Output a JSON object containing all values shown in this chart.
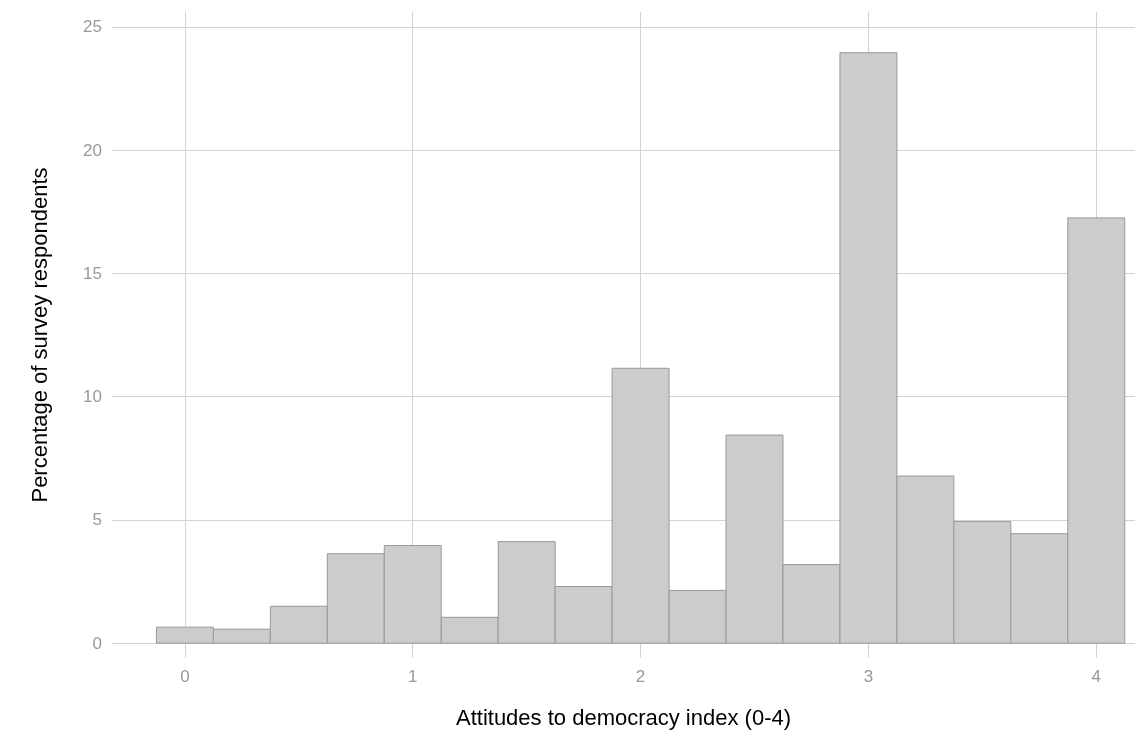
{
  "chart_data": {
    "type": "histogram",
    "xlabel": "Attitudes to democracy index (0-4)",
    "ylabel": "Percentage of survey respondents",
    "bins": [
      -0.125,
      0.125,
      0.375,
      0.625,
      0.875,
      1.125,
      1.375,
      1.625,
      1.875,
      2.125,
      2.375,
      2.625,
      2.875,
      3.125,
      3.375,
      3.625,
      3.875,
      4.125
    ],
    "values": [
      0.65,
      0.57,
      1.5,
      3.63,
      3.96,
      1.05,
      4.12,
      2.3,
      11.15,
      2.14,
      8.44,
      3.19,
      23.95,
      6.78,
      4.93,
      4.44,
      17.25
    ],
    "color": "#cccccc",
    "xlim": [
      -0.32,
      4.17
    ],
    "xticks": [
      0,
      1,
      2,
      3,
      4
    ],
    "ylim": [
      -0.6,
      25.6
    ],
    "yticks": [
      0,
      5,
      10,
      15,
      20,
      25
    ],
    "grid": true
  }
}
